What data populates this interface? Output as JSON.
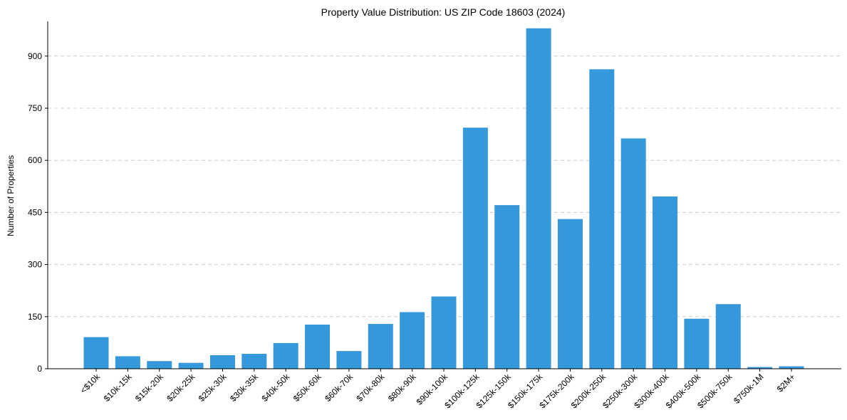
{
  "chart_data": {
    "type": "bar",
    "title": "Property Value Distribution: US ZIP Code 18603 (2024)",
    "xlabel": "",
    "ylabel": "Number of Properties",
    "ylim": [
      0,
      1000
    ],
    "yticks": [
      0,
      150,
      300,
      450,
      600,
      750,
      900
    ],
    "grid": "y-dashed",
    "bar_color": "#3498db",
    "grid_color": "#cccccc",
    "categories": [
      "<$10k",
      "$10k-15k",
      "$15k-20k",
      "$20k-25k",
      "$25k-30k",
      "$30k-35k",
      "$40k-50k",
      "$50k-60k",
      "$60k-70k",
      "$70k-80k",
      "$80k-90k",
      "$90k-100k",
      "$100k-125k",
      "$125k-150k",
      "$150k-175k",
      "$175k-200k",
      "$200k-250k",
      "$250k-300k",
      "$300k-400k",
      "$400k-500k",
      "$500k-750k",
      "$750k-1M",
      "$2M+"
    ],
    "values": [
      91,
      36,
      22,
      17,
      39,
      43,
      74,
      127,
      51,
      129,
      163,
      208,
      694,
      471,
      980,
      431,
      862,
      663,
      496,
      144,
      186,
      5,
      7
    ]
  }
}
